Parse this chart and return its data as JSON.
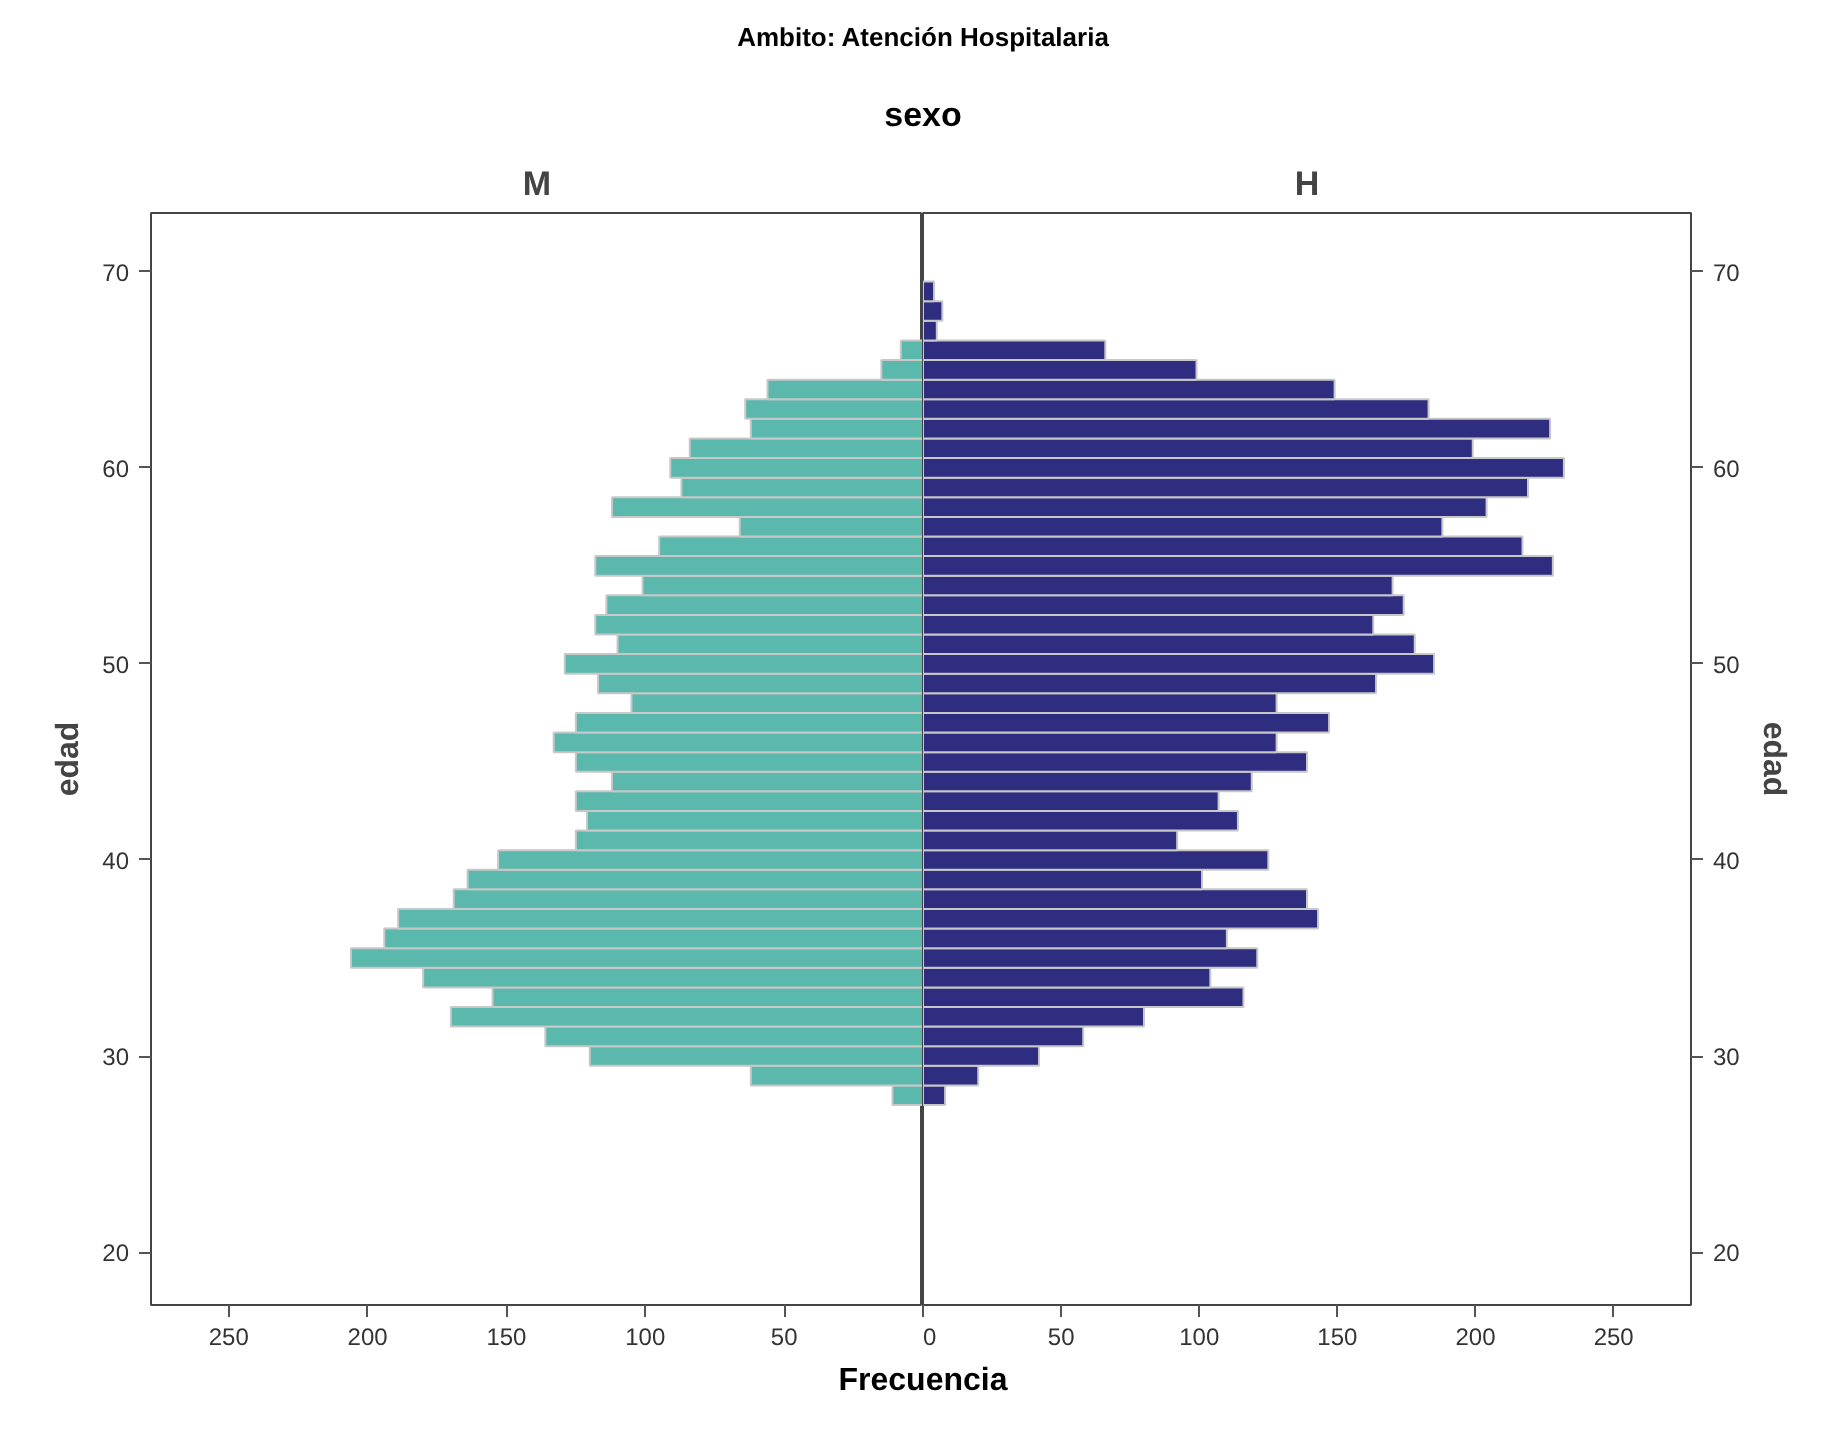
{
  "chart_data": [
    {
      "type": "bar",
      "orientation": "horizontal",
      "title": "Ambito: Atención Hospitalaria",
      "subtitle": "sexo",
      "xlabel": "Frecuencia",
      "ylabel": "edad",
      "x": [
        28,
        29,
        30,
        31,
        32,
        33,
        34,
        35,
        36,
        37,
        38,
        39,
        40,
        41,
        42,
        43,
        44,
        45,
        46,
        47,
        48,
        49,
        50,
        51,
        52,
        53,
        54,
        55,
        56,
        57,
        58,
        59,
        60,
        61,
        62,
        63,
        64,
        65,
        66
      ],
      "series": [
        {
          "name": "M",
          "color": "#5bb8ad",
          "values": [
            11,
            62,
            120,
            136,
            170,
            155,
            180,
            206,
            194,
            189,
            169,
            164,
            153,
            125,
            121,
            125,
            112,
            125,
            133,
            125,
            105,
            117,
            129,
            110,
            118,
            114,
            101,
            118,
            95,
            66,
            112,
            87,
            91,
            84,
            62,
            64,
            56,
            15,
            8
          ]
        }
      ],
      "xlim": [
        278,
        0
      ],
      "xticks": [
        {
          "value": 0,
          "label": null
        },
        50,
        100,
        150,
        200,
        250
      ],
      "ylim": [
        17.3,
        73
      ],
      "yticks": [
        20,
        30,
        40,
        50,
        60,
        70
      ],
      "grid": false,
      "legend": false
    },
    {
      "type": "bar",
      "orientation": "horizontal",
      "ylabel": "edad",
      "x": [
        28,
        29,
        30,
        31,
        32,
        33,
        34,
        35,
        36,
        37,
        38,
        39,
        40,
        41,
        42,
        43,
        44,
        45,
        46,
        47,
        48,
        49,
        50,
        51,
        52,
        53,
        54,
        55,
        56,
        57,
        58,
        59,
        60,
        61,
        62,
        63,
        64,
        65,
        66,
        67,
        68,
        69
      ],
      "series": [
        {
          "name": "H",
          "color": "#2e2d7f",
          "values": [
            8,
            20,
            42,
            58,
            80,
            116,
            104,
            121,
            110,
            143,
            139,
            101,
            125,
            92,
            114,
            107,
            119,
            139,
            128,
            147,
            128,
            164,
            185,
            178,
            163,
            174,
            170,
            228,
            217,
            188,
            204,
            219,
            232,
            199,
            227,
            183,
            149,
            99,
            66,
            5,
            7,
            4
          ]
        }
      ],
      "xlim": [
        0,
        278
      ],
      "xticks": [
        0,
        50,
        100,
        150,
        200,
        250
      ],
      "ylim": [
        17.3,
        73
      ],
      "yticks": [
        20,
        30,
        40,
        50,
        60,
        70
      ],
      "grid": false,
      "legend": false
    }
  ]
}
